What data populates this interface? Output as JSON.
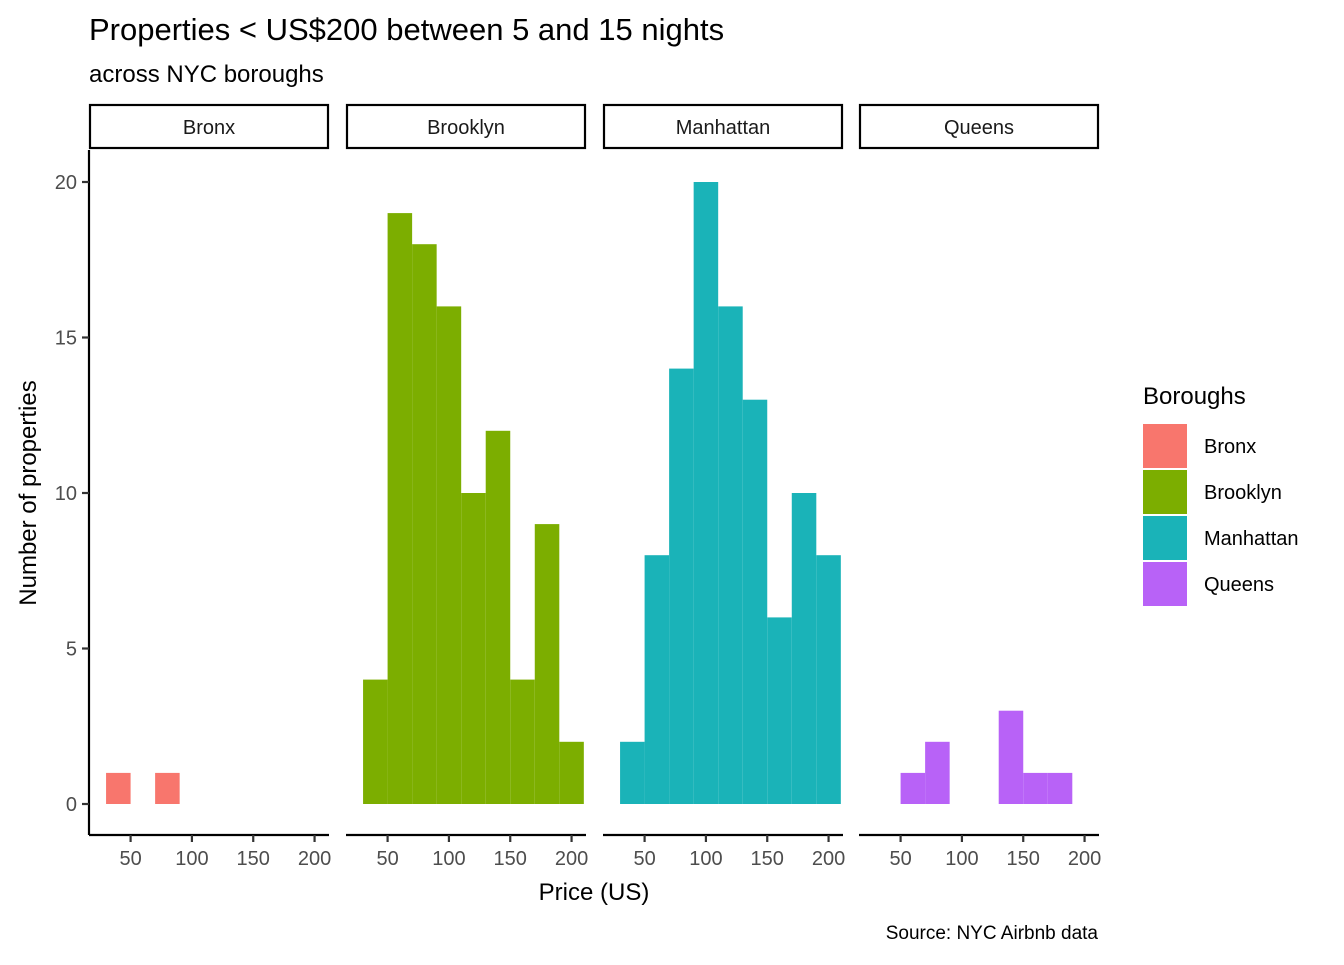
{
  "chart_data": {
    "type": "bar",
    "title": "Properties < US$200 between 5 and 15 nights",
    "subtitle": "across NYC boroughs",
    "xlabel": "Price (US)",
    "ylabel": "Number of properties",
    "caption": "Source: NYC Airbnb data",
    "legend_title": "Boroughs",
    "legend_position": "right",
    "grid": false,
    "xlim": [
      25,
      210
    ],
    "ylim": [
      0,
      20
    ],
    "x_ticks": [
      50,
      100,
      150,
      200
    ],
    "y_ticks": [
      0,
      5,
      10,
      15,
      20
    ],
    "bin_width": 20,
    "panels": [
      {
        "name": "Bronx",
        "color": "#F8766D",
        "bins": [
          {
            "start": 30,
            "end": 50,
            "count": 1
          },
          {
            "start": 70,
            "end": 90,
            "count": 1
          }
        ]
      },
      {
        "name": "Brooklyn",
        "color": "#7CAE00",
        "bins": [
          {
            "start": 30,
            "end": 50,
            "count": 4
          },
          {
            "start": 50,
            "end": 70,
            "count": 19
          },
          {
            "start": 70,
            "end": 90,
            "count": 18
          },
          {
            "start": 90,
            "end": 110,
            "count": 16
          },
          {
            "start": 110,
            "end": 130,
            "count": 10
          },
          {
            "start": 130,
            "end": 150,
            "count": 12
          },
          {
            "start": 150,
            "end": 170,
            "count": 4
          },
          {
            "start": 170,
            "end": 190,
            "count": 9
          },
          {
            "start": 190,
            "end": 210,
            "count": 2
          }
        ]
      },
      {
        "name": "Manhattan",
        "color": "#1AB3B8",
        "bins": [
          {
            "start": 30,
            "end": 50,
            "count": 2
          },
          {
            "start": 50,
            "end": 70,
            "count": 8
          },
          {
            "start": 70,
            "end": 90,
            "count": 14
          },
          {
            "start": 90,
            "end": 110,
            "count": 20
          },
          {
            "start": 110,
            "end": 130,
            "count": 16
          },
          {
            "start": 130,
            "end": 150,
            "count": 13
          },
          {
            "start": 150,
            "end": 170,
            "count": 6
          },
          {
            "start": 170,
            "end": 190,
            "count": 10
          },
          {
            "start": 190,
            "end": 210,
            "count": 8
          }
        ]
      },
      {
        "name": "Queens",
        "color": "#B862F7",
        "bins": [
          {
            "start": 50,
            "end": 70,
            "count": 1
          },
          {
            "start": 70,
            "end": 90,
            "count": 2
          },
          {
            "start": 130,
            "end": 150,
            "count": 3
          },
          {
            "start": 150,
            "end": 170,
            "count": 1
          },
          {
            "start": 170,
            "end": 190,
            "count": 1
          }
        ]
      }
    ]
  }
}
